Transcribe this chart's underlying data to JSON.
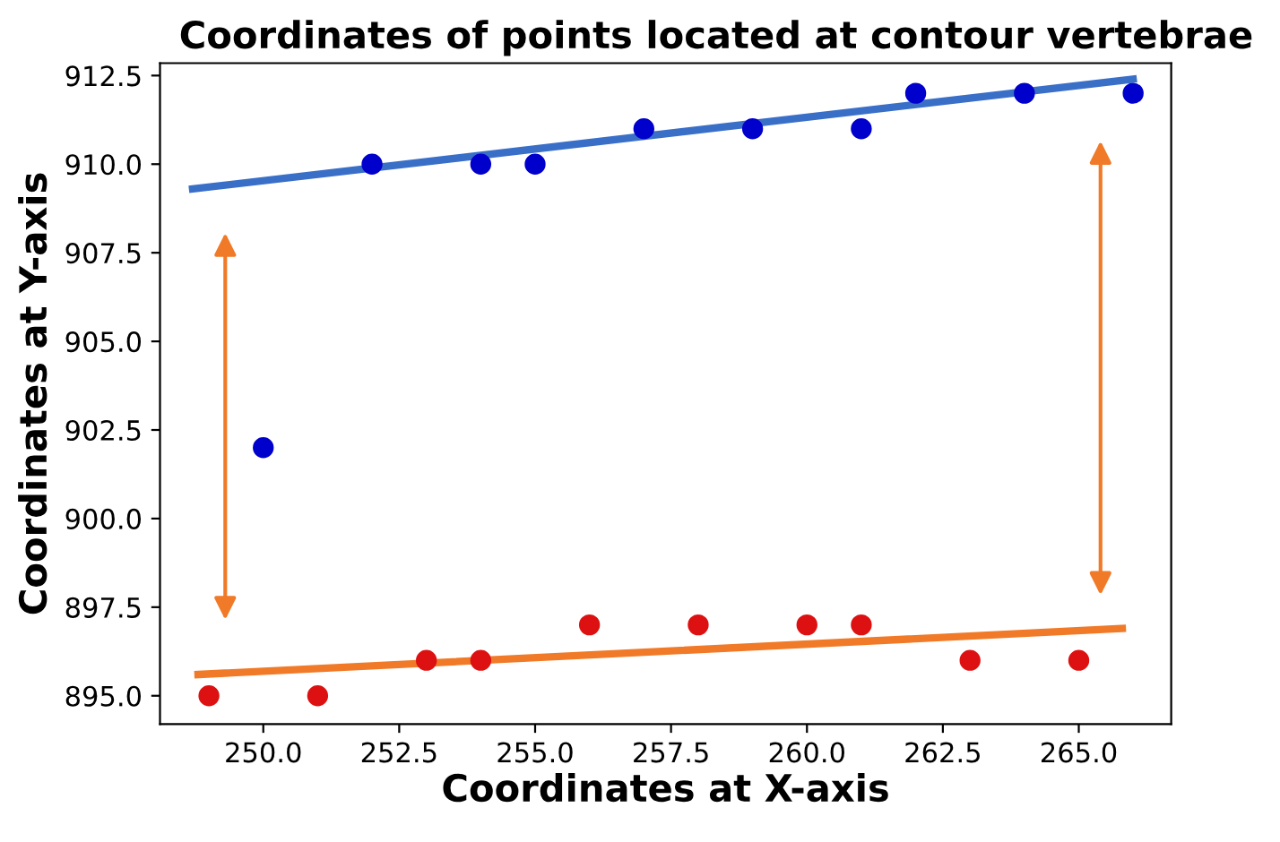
{
  "chart_data": {
    "type": "scatter",
    "title": "Coordinates of points located at contour vertebrae",
    "xlabel": "Coordinates at X-axis",
    "ylabel": "Coordinates at Y-axis",
    "series": [
      {
        "color": "#0000cc",
        "x": [
          250,
          252,
          254,
          255,
          257,
          259,
          261,
          262,
          264,
          266
        ],
        "values": [
          902,
          910,
          910,
          910,
          911,
          911,
          911,
          912,
          912,
          912
        ]
      },
      {
        "color": "#dd1111",
        "x": [
          249,
          251,
          253,
          254,
          256,
          258,
          260,
          261,
          263,
          265
        ],
        "values": [
          895,
          895,
          896,
          896,
          897,
          897,
          897,
          897,
          896,
          896
        ]
      },
      {
        "type": "line",
        "marker": "none",
        "color": "#3a6fc8",
        "x": [
          248.7,
          266
        ],
        "values": [
          909.3,
          912.4
        ]
      },
      {
        "type": "line",
        "marker": "none",
        "color": "#f07a28",
        "x": [
          248.8,
          265.8
        ],
        "values": [
          895.6,
          896.9
        ]
      }
    ],
    "xlim": [
      248.1,
      266.7
    ],
    "ylim": [
      894.2,
      912.85
    ],
    "xticks": [
      {
        "value": 250,
        "label": "250.0"
      },
      252.5,
      {
        "value": 255,
        "label": "255.0"
      },
      257.5,
      {
        "value": 260,
        "label": "260.0"
      },
      262.5,
      {
        "value": 265,
        "label": "265.0"
      }
    ],
    "yticks": [
      {
        "value": 895,
        "label": "895.0"
      },
      897.5,
      {
        "value": 900,
        "label": "900.0"
      },
      902.5,
      {
        "value": 905,
        "label": "905.0"
      },
      907.5,
      {
        "value": 910,
        "label": "910.0"
      },
      912.5
    ],
    "marker": "circle",
    "grid": false,
    "legend": false
  }
}
